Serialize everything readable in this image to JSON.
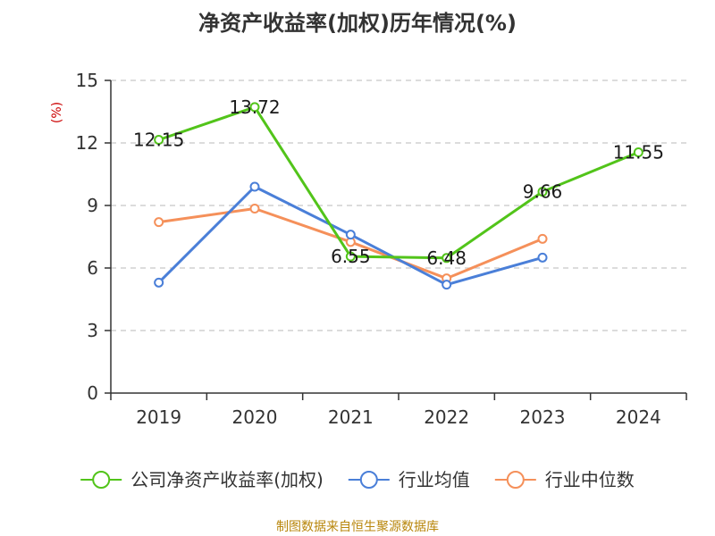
{
  "title": "净资产收益率(加权)历年情况(%)",
  "unit_label": "(%)",
  "source": "制图数据来自恒生聚源数据库",
  "colors": {
    "unit": "#cc0000",
    "source": "#b8860b",
    "grid": "#c8c8c8",
    "axis": "#333333"
  },
  "chart_data": {
    "type": "line",
    "categories": [
      "2019",
      "2020",
      "2021",
      "2022",
      "2023",
      "2024"
    ],
    "ylim": [
      0,
      15
    ],
    "yticks": [
      "0",
      "3",
      "6",
      "9",
      "12",
      "15"
    ],
    "grid": true,
    "legend_position": "bottom",
    "series": [
      {
        "name": "公司净资产收益率(加权)",
        "color": "#52c41a",
        "values": [
          12.15,
          13.72,
          6.55,
          6.48,
          9.66,
          11.55
        ],
        "labels": [
          "12.15",
          "13.72",
          "6.55",
          "6.48",
          "9.66",
          "11.55"
        ]
      },
      {
        "name": "行业均值",
        "color": "#4a7fd8",
        "values": [
          5.3,
          9.9,
          7.6,
          5.2,
          6.5,
          null
        ]
      },
      {
        "name": "行业中位数",
        "color": "#f5905a",
        "values": [
          8.2,
          8.85,
          7.25,
          5.5,
          7.4,
          null
        ]
      }
    ]
  }
}
